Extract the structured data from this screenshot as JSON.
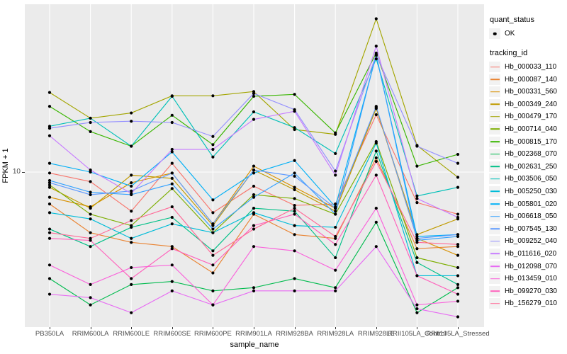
{
  "axes": {
    "y_title": "FPKM + 1",
    "x_title": "sample_name",
    "y_tick": "10"
  },
  "legend": {
    "quant_title": "quant_status",
    "ok_label": "OK",
    "tracking_title": "tracking_id"
  },
  "style": {
    "panel_bg": "#EBEBEB",
    "grid_color": "#FFFFFF",
    "point_color": "#000000",
    "axis_text_color": "#4D4D4D",
    "legend_key_bg": "#F2F2F2"
  },
  "chart_data": {
    "type": "line",
    "title": "",
    "xlabel": "sample_name",
    "ylabel": "FPKM + 1",
    "y_scale": "log10",
    "y_ticks": [
      10
    ],
    "ylim": [
      2.2,
      50
    ],
    "grid": "major-on-white",
    "legend_position": "right",
    "point_shape": "filled-black-circle",
    "categories": [
      "PB350LA",
      "RRIM600LA",
      "RRIM600LE",
      "RRIM600SE",
      "RRIM600PE",
      "RRIM901LA",
      "RRIM928BA",
      "RRIM928LA",
      "RRIM928LE",
      "RRII105LA_Control",
      "RRII105LA_Stressed"
    ],
    "series": [
      {
        "name": "Hb_000033_110",
        "color": "#F8766D",
        "values": [
          9.9,
          9.1,
          6.8,
          10.9,
          6.7,
          8.7,
          7.2,
          7.3,
          17.6,
          7.4,
          6.6
        ]
      },
      {
        "name": "Hb_000087_140",
        "color": "#EA8331",
        "values": [
          7.3,
          5.5,
          5.0,
          4.8,
          3.7,
          6.6,
          5.4,
          5.2,
          11.5,
          4.7,
          4.8
        ]
      },
      {
        "name": "Hb_000331_560",
        "color": "#D89000",
        "values": [
          7.8,
          7.1,
          9.0,
          9.9,
          6.0,
          10.6,
          8.6,
          7.0,
          18.9,
          5.2,
          4.4
        ]
      },
      {
        "name": "Hb_000349_240",
        "color": "#C09B00",
        "values": [
          8.6,
          7.0,
          9.7,
          9.4,
          5.9,
          10.2,
          8.4,
          6.8,
          18.7,
          5.4,
          6.3
        ]
      },
      {
        "name": "Hb_000479_170",
        "color": "#A3A500",
        "values": [
          21.9,
          17.0,
          17.9,
          21.2,
          21.2,
          22.1,
          15.2,
          14.5,
          45.3,
          13.0,
          9.5
        ]
      },
      {
        "name": "Hb_000714_040",
        "color": "#7CAE00",
        "values": [
          8.8,
          6.6,
          5.9,
          8.5,
          5.5,
          8.0,
          7.7,
          6.6,
          13.5,
          4.3,
          3.9
        ]
      },
      {
        "name": "Hb_000815_170",
        "color": "#39B600",
        "values": [
          19.1,
          14.9,
          12.9,
          17.5,
          13.1,
          21.1,
          21.5,
          14.7,
          32.3,
          10.6,
          11.9
        ]
      },
      {
        "name": "Hb_002368_070",
        "color": "#00BB4E",
        "values": [
          3.5,
          2.7,
          3.3,
          3.4,
          3.1,
          3.2,
          3.5,
          3.2,
          6.1,
          2.5,
          3.2
        ]
      },
      {
        "name": "Hb_002631_250",
        "color": "#00C087",
        "values": [
          5.7,
          4.8,
          5.8,
          6.4,
          4.6,
          7.0,
          6.8,
          4.3,
          12.3,
          4.1,
          3.3
        ]
      },
      {
        "name": "Hb_003506_050",
        "color": "#00C0B8",
        "values": [
          15.7,
          17.0,
          12.9,
          21.1,
          11.6,
          18.1,
          15.5,
          12.0,
          30.5,
          7.9,
          8.6
        ]
      },
      {
        "name": "Hb_005250_030",
        "color": "#00BCD8",
        "values": [
          6.7,
          6.3,
          5.2,
          6.0,
          5.5,
          6.7,
          5.9,
          5.8,
          13.3,
          3.6,
          3.6
        ]
      },
      {
        "name": "Hb_005801_020",
        "color": "#00B0F6",
        "values": [
          10.9,
          10.0,
          8.7,
          12.2,
          7.6,
          9.9,
          11.2,
          7.1,
          31.6,
          5.3,
          5.4
        ]
      },
      {
        "name": "Hb_006618_050",
        "color": "#35A2FF",
        "values": [
          9.2,
          8.2,
          8.0,
          8.9,
          5.7,
          7.8,
          9.9,
          6.6,
          31.8,
          5.1,
          5.3
        ]
      },
      {
        "name": "Hb_007545_130",
        "color": "#619CFF",
        "values": [
          9.0,
          8.0,
          8.3,
          9.9,
          6.0,
          10.2,
          9.6,
          7.0,
          19.1,
          5.2,
          5.4
        ]
      },
      {
        "name": "Hb_009252_040",
        "color": "#9590FF",
        "values": [
          15.4,
          16.3,
          16.5,
          16.3,
          14.2,
          21.7,
          18.5,
          10.1,
          31.8,
          12.9,
          10.9
        ]
      },
      {
        "name": "Hb_011616_020",
        "color": "#C77CFF",
        "values": [
          14.3,
          10.2,
          8.1,
          12.5,
          12.5,
          16.8,
          18.2,
          9.7,
          34.6,
          7.7,
          6.4
        ]
      },
      {
        "name": "Hb_012098_070",
        "color": "#E76BF3",
        "values": [
          3.0,
          2.9,
          2.5,
          3.1,
          2.7,
          3.1,
          3.1,
          3.1,
          4.8,
          2.6,
          2.4
        ]
      },
      {
        "name": "Hb_013459_010",
        "color": "#FA62DB",
        "values": [
          4.0,
          3.3,
          3.9,
          4.0,
          2.7,
          4.8,
          4.6,
          3.8,
          7.0,
          2.7,
          2.8
        ]
      },
      {
        "name": "Hb_099270_030",
        "color": "#FF62BC",
        "values": [
          5.2,
          5.1,
          3.5,
          4.7,
          4.0,
          5.9,
          6.6,
          4.9,
          9.7,
          3.6,
          3.0
        ]
      },
      {
        "name": "Hb_156279_010",
        "color": "#FF6A98",
        "values": [
          5.5,
          5.2,
          6.2,
          7.1,
          4.4,
          5.7,
          7.0,
          5.3,
          11.1,
          5.0,
          4.9
        ]
      }
    ]
  }
}
